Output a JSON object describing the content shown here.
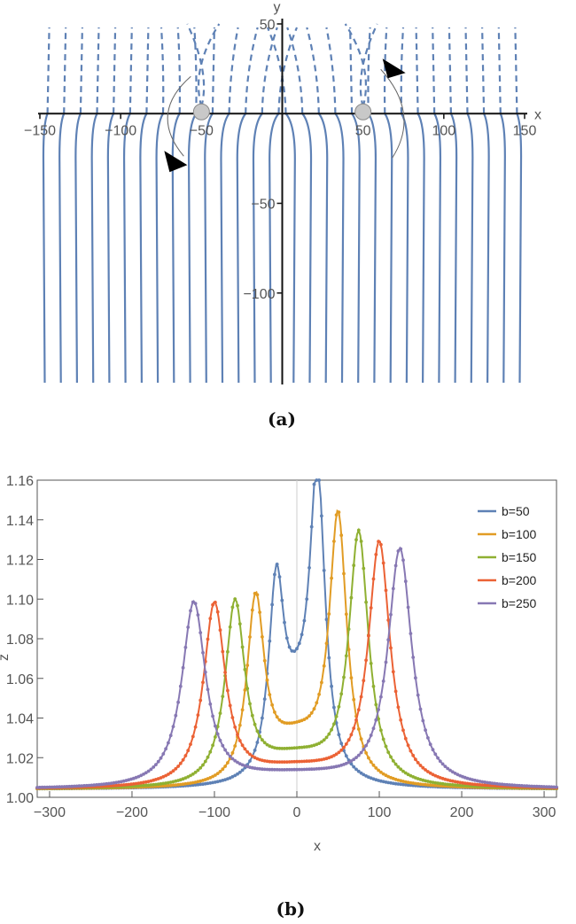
{
  "chart_data": [
    {
      "type": "line",
      "panel_label": "(a)",
      "xlabel": "x",
      "ylabel": "y",
      "xlim": [
        -150,
        150
      ],
      "ylim": [
        -150,
        50
      ],
      "x_ticks": [
        -150,
        -100,
        -50,
        50,
        100,
        150
      ],
      "y_ticks": [
        50,
        -50,
        -100
      ],
      "tick_labels_x": [
        "−150",
        "−100",
        "−50",
        "50",
        "100",
        "150"
      ],
      "tick_labels_y": [
        "50",
        "−50",
        "−100"
      ],
      "line_color": "#5e81b5",
      "field_line_starts_x": [
        -147,
        -137,
        -127,
        -117,
        -107,
        -97,
        -87,
        -77,
        -67,
        -57,
        -47,
        -37,
        -27,
        -17,
        -7,
        7,
        17,
        27,
        37,
        47,
        57,
        67,
        77,
        87,
        97,
        107,
        117,
        127,
        137,
        147
      ],
      "upper_half_dashed": true,
      "lower_half_solid": true,
      "point_sources": [
        {
          "x": -50,
          "y": 0
        },
        {
          "x": 50,
          "y": 0
        }
      ],
      "arrows": [
        {
          "around_x": -50,
          "direction": "clockwise-down"
        },
        {
          "around_x": 50,
          "direction": "counterclockwise-up"
        }
      ]
    },
    {
      "type": "line",
      "panel_label": "(b)",
      "xlabel": "x",
      "ylabel": "z",
      "xlim": [
        -315,
        315
      ],
      "ylim": [
        1.0,
        1.16
      ],
      "x_ticks": [
        -300,
        -200,
        -100,
        0,
        100,
        200,
        300
      ],
      "y_ticks": [
        1.0,
        1.02,
        1.04,
        1.06,
        1.08,
        1.1,
        1.12,
        1.14,
        1.16
      ],
      "tick_labels_x": [
        "−300",
        "−200",
        "−100",
        "0",
        "100",
        "200",
        "300"
      ],
      "tick_labels_y": [
        "1.00",
        "1.02",
        "1.04",
        "1.06",
        "1.08",
        "1.10",
        "1.12",
        "1.14",
        "1.16"
      ],
      "legend_position": "top-right",
      "series": [
        {
          "name": "b=50",
          "color": "#5e81b5",
          "b": 50,
          "left_peak": 1.099,
          "right_peak": 1.155,
          "center_value": 1.075
        },
        {
          "name": "b=100",
          "color": "#e19c24",
          "b": 100,
          "left_peak": 1.093,
          "right_peak": 1.135,
          "center_value": 1.038
        },
        {
          "name": "b=150",
          "color": "#8fb032",
          "b": 150,
          "left_peak": 1.092,
          "right_peak": 1.127,
          "center_value": 1.025
        },
        {
          "name": "b=200",
          "color": "#eb6235",
          "b": 200,
          "left_peak": 1.092,
          "right_peak": 1.123,
          "center_value": 1.018
        },
        {
          "name": "b=250",
          "color": "#8778b3",
          "b": 250,
          "left_peak": 1.093,
          "right_peak": 1.12,
          "center_value": 1.014
        }
      ]
    }
  ]
}
